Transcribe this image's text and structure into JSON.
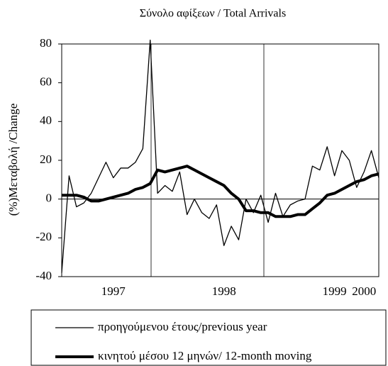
{
  "chart_data": {
    "type": "line",
    "title": "Σύνολο αφίξεων / Total Arrivals",
    "y_label": "(%)Μεταβολή /Change",
    "categories": [
      null,
      null,
      null,
      null,
      null,
      null,
      null,
      "1997",
      null,
      null,
      null,
      null,
      null,
      null,
      null,
      null,
      null,
      null,
      null,
      null,
      null,
      null,
      "1998",
      null,
      null,
      null,
      null,
      null,
      null,
      null,
      null,
      null,
      null,
      null,
      null,
      null,
      null,
      "1999",
      null,
      null,
      null,
      "2000",
      null,
      null
    ],
    "series": [
      {
        "name": "προηγούμενου έτους/previous year",
        "color": "#000000",
        "width": 1.3,
        "values": [
          -38,
          12,
          -4,
          -2,
          3,
          11,
          19,
          11,
          16,
          16,
          19,
          26,
          82,
          3,
          7,
          4,
          14,
          -8,
          0,
          -7,
          -10,
          -3,
          -24,
          -14,
          -21,
          0,
          -7,
          2,
          -12,
          3,
          -9,
          -3,
          -1,
          0,
          17,
          15,
          27,
          12,
          25,
          20,
          6,
          14,
          25,
          11
        ]
      },
      {
        "name": "κινητού μέσου 12 μηνών/ 12-month moving",
        "color": "#000000",
        "width": 4,
        "values": [
          2,
          2,
          2,
          1,
          -1,
          -1,
          0,
          1,
          2,
          3,
          5,
          6,
          8,
          15,
          14,
          15,
          16,
          17,
          15,
          13,
          11,
          9,
          7,
          3,
          0,
          -6,
          -6,
          -7,
          -7,
          -9,
          -9,
          -9,
          -8,
          -8,
          -5,
          -2,
          2,
          3,
          5,
          7,
          9,
          10,
          12,
          13
        ]
      }
    ],
    "ylim": [
      -40,
      80
    ],
    "yticks": [
      -40,
      -20,
      0,
      20,
      40,
      60,
      80
    ]
  }
}
